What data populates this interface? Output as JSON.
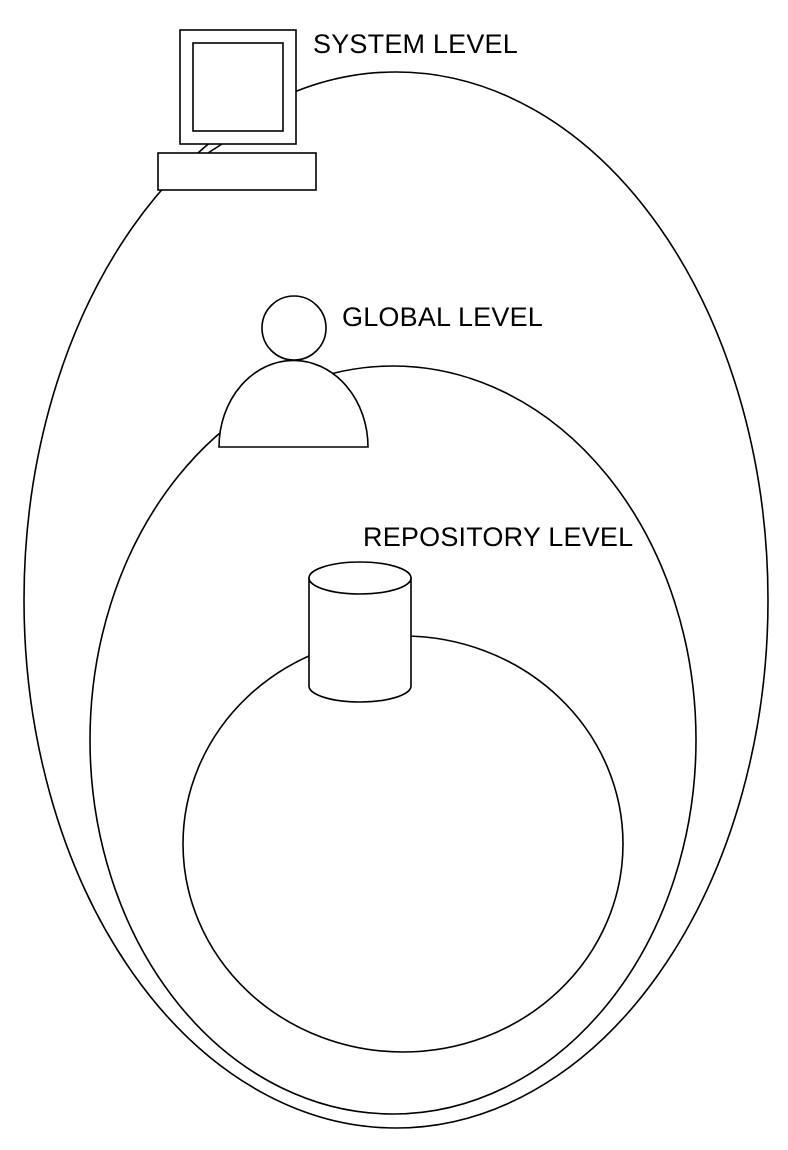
{
  "labels": {
    "system": "SYSTEM LEVEL",
    "global": "GLOBAL LEVEL",
    "repository": "REPOSITORY LEVEL"
  },
  "icons": {
    "system": "computer-icon",
    "global": "user-icon",
    "repository": "database-icon"
  },
  "colors": {
    "stroke": "#000000",
    "background": "#ffffff"
  }
}
